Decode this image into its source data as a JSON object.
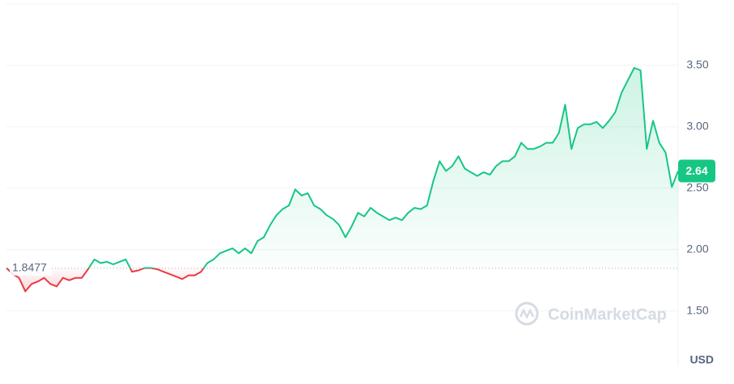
{
  "chart_data": {
    "type": "line",
    "values": [
      1.85,
      1.8,
      1.77,
      1.66,
      1.72,
      1.74,
      1.77,
      1.72,
      1.7,
      1.77,
      1.75,
      1.77,
      1.77,
      1.84,
      1.92,
      1.89,
      1.9,
      1.88,
      1.9,
      1.92,
      1.82,
      1.83,
      1.85,
      1.85,
      1.84,
      1.82,
      1.8,
      1.78,
      1.76,
      1.79,
      1.79,
      1.82,
      1.89,
      1.92,
      1.97,
      1.99,
      2.01,
      1.97,
      2.01,
      1.97,
      2.07,
      2.1,
      2.2,
      2.28,
      2.33,
      2.36,
      2.49,
      2.44,
      2.46,
      2.36,
      2.33,
      2.28,
      2.25,
      2.2,
      2.1,
      2.19,
      2.3,
      2.27,
      2.34,
      2.3,
      2.27,
      2.24,
      2.26,
      2.24,
      2.3,
      2.34,
      2.33,
      2.36,
      2.56,
      2.72,
      2.64,
      2.68,
      2.76,
      2.66,
      2.63,
      2.6,
      2.63,
      2.61,
      2.68,
      2.72,
      2.72,
      2.76,
      2.87,
      2.82,
      2.82,
      2.84,
      2.87,
      2.87,
      2.95,
      3.18,
      2.82,
      2.99,
      3.02,
      3.02,
      3.04,
      2.99,
      3.05,
      3.12,
      3.28,
      3.38,
      3.48,
      3.46,
      2.82,
      3.05,
      2.87,
      2.79,
      2.51,
      2.64
    ],
    "reference": 1.8477,
    "ylim": [
      1.05,
      4.0
    ],
    "yticks": [
      {
        "value": 1.5,
        "label": "1.50"
      },
      {
        "value": 2,
        "label": "2.00"
      },
      {
        "value": 2.5,
        "label": "2.50"
      },
      {
        "value": 3,
        "label": "3.00"
      },
      {
        "value": 3.5,
        "label": "3.50"
      }
    ],
    "y_axis_label": "USD",
    "up_color": "#16c784",
    "down_color": "#ea3943",
    "grid": true,
    "watermark": "CoinMarketCap"
  }
}
